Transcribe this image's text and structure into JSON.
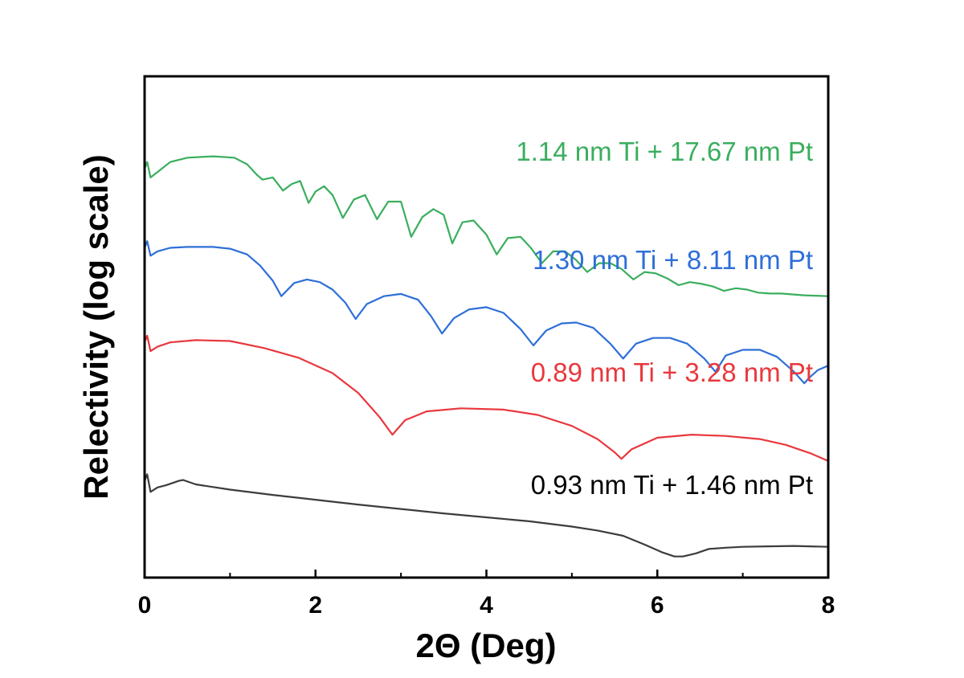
{
  "chart_data": {
    "type": "line",
    "title": "",
    "xlabel": "2Θ (Deg)",
    "ylabel": "Relectivity (log scale)",
    "xlim": [
      0,
      8
    ],
    "y_scale": "log",
    "y_ticks_shown": false,
    "grid": false,
    "x_major_ticks": [
      0,
      2,
      4,
      6,
      8
    ],
    "x_minor_ticks": [
      1,
      3,
      5,
      7
    ],
    "x_tick_labels": [
      "0",
      "2",
      "4",
      "6",
      "8"
    ],
    "series": [
      {
        "name": "1.14 nm Ti + 17.67 nm Pt",
        "color": "#3aae5e",
        "x": [
          0,
          0.03,
          0.07,
          0.15,
          0.3,
          0.5,
          0.8,
          1.05,
          1.2,
          1.32,
          1.38,
          1.5,
          1.62,
          1.72,
          1.82,
          1.92,
          2.0,
          2.1,
          2.2,
          2.32,
          2.45,
          2.58,
          2.72,
          2.85,
          3.0,
          3.12,
          3.25,
          3.38,
          3.5,
          3.6,
          3.72,
          3.85,
          4.0,
          4.12,
          4.25,
          4.4,
          4.52,
          4.65,
          4.78,
          4.92,
          5.05,
          5.18,
          5.32,
          5.45,
          5.58,
          5.72,
          5.85,
          5.98,
          6.12,
          6.25,
          6.38,
          6.52,
          6.65,
          6.78,
          6.92,
          7.05,
          7.18,
          7.32,
          7.45,
          7.58,
          7.72,
          7.85,
          8.0
        ],
        "y": [
          8.7,
          8.85,
          8.5,
          8.62,
          8.85,
          8.95,
          8.98,
          8.95,
          8.8,
          8.55,
          8.45,
          8.5,
          8.2,
          8.35,
          8.42,
          7.92,
          8.18,
          8.3,
          8.1,
          7.58,
          8.0,
          8.1,
          7.55,
          7.95,
          7.95,
          7.15,
          7.6,
          7.78,
          7.65,
          7.0,
          7.48,
          7.52,
          7.2,
          6.75,
          7.12,
          7.15,
          6.9,
          6.55,
          6.82,
          6.82,
          6.62,
          6.35,
          6.55,
          6.55,
          6.42,
          6.18,
          6.35,
          6.32,
          6.2,
          6.05,
          6.12,
          6.08,
          6.02,
          5.92,
          5.98,
          5.95,
          5.88,
          5.86,
          5.86,
          5.84,
          5.82,
          5.81,
          5.8
        ]
      },
      {
        "name": "1.30 nm Ti + 8.11 nm Pt",
        "color": "#2e6fd8",
        "x": [
          0,
          0.03,
          0.07,
          0.15,
          0.3,
          0.5,
          0.8,
          1.0,
          1.2,
          1.35,
          1.5,
          1.6,
          1.75,
          1.9,
          2.05,
          2.2,
          2.35,
          2.47,
          2.6,
          2.8,
          3.0,
          3.2,
          3.35,
          3.48,
          3.62,
          3.8,
          4.0,
          4.2,
          4.4,
          4.55,
          4.7,
          4.88,
          5.05,
          5.25,
          5.45,
          5.6,
          5.75,
          5.95,
          6.15,
          6.35,
          6.55,
          6.68,
          6.8,
          7.0,
          7.2,
          7.4,
          7.6,
          7.72,
          7.78,
          7.88,
          8.0
        ],
        "y": [
          6.9,
          7.05,
          6.72,
          6.82,
          6.9,
          6.92,
          6.92,
          6.88,
          6.75,
          6.5,
          6.15,
          5.8,
          6.1,
          6.18,
          6.12,
          5.95,
          5.65,
          5.28,
          5.62,
          5.8,
          5.85,
          5.72,
          5.35,
          4.95,
          5.3,
          5.5,
          5.55,
          5.42,
          5.05,
          4.68,
          5.02,
          5.18,
          5.2,
          5.08,
          4.72,
          4.38,
          4.72,
          4.85,
          4.85,
          4.72,
          4.38,
          4.08,
          4.45,
          4.58,
          4.58,
          4.42,
          4.08,
          3.82,
          3.95,
          4.12,
          4.22
        ]
      },
      {
        "name": "0.89 nm Ti + 3.28 nm Pt",
        "color": "#e8383d",
        "x": [
          0,
          0.03,
          0.07,
          0.15,
          0.3,
          0.6,
          1.0,
          1.4,
          1.8,
          2.2,
          2.5,
          2.75,
          2.9,
          3.05,
          3.3,
          3.7,
          4.2,
          4.6,
          5.0,
          5.3,
          5.5,
          5.58,
          5.7,
          6.0,
          6.4,
          6.8,
          7.2,
          7.5,
          7.8,
          8.0
        ],
        "y": [
          4.75,
          4.9,
          4.55,
          4.65,
          4.75,
          4.8,
          4.78,
          4.62,
          4.4,
          4.05,
          3.6,
          3.05,
          2.65,
          2.98,
          3.18,
          3.25,
          3.22,
          3.1,
          2.85,
          2.55,
          2.25,
          2.1,
          2.32,
          2.58,
          2.65,
          2.62,
          2.55,
          2.42,
          2.22,
          2.05
        ]
      },
      {
        "name": "0.93 nm Ti + 1.46 nm Pt",
        "color": "#3c3c3c",
        "x": [
          0,
          0.03,
          0.07,
          0.15,
          0.25,
          0.4,
          0.45,
          0.6,
          1.0,
          1.5,
          2.0,
          2.5,
          3.0,
          3.5,
          4.0,
          4.5,
          5.0,
          5.3,
          5.6,
          5.85,
          6.05,
          6.2,
          6.3,
          6.45,
          6.6,
          6.8,
          7.0,
          7.3,
          7.6,
          8.0
        ],
        "y": [
          1.6,
          1.75,
          1.35,
          1.45,
          1.5,
          1.6,
          1.62,
          1.52,
          1.4,
          1.28,
          1.17,
          1.06,
          0.96,
          0.86,
          0.77,
          0.68,
          0.56,
          0.47,
          0.35,
          0.15,
          -0.02,
          -0.12,
          -0.12,
          -0.05,
          0.05,
          0.08,
          0.1,
          0.11,
          0.12,
          0.1
        ]
      }
    ]
  }
}
